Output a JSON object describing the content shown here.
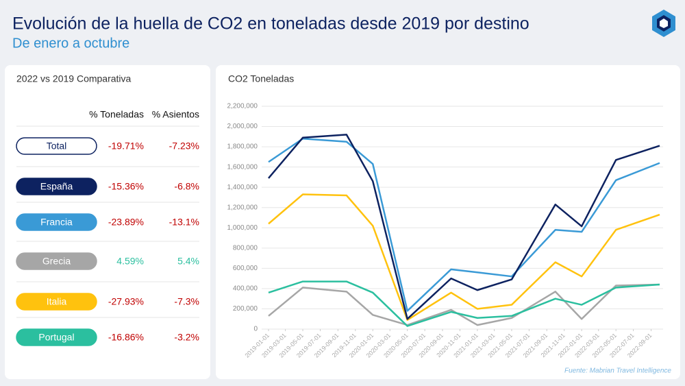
{
  "header": {
    "title": "Evolución de la huella de CO2 en toneladas desde 2019 por destino",
    "subtitle": "De enero a octubre"
  },
  "comparison": {
    "title": "2022 vs 2019 Comparativa",
    "columns": [
      "% Toneladas",
      "% Asientos"
    ],
    "rows": [
      {
        "name": "Total",
        "color": "#ffffff",
        "tons": "-19.71%",
        "seats": "-7.23%"
      },
      {
        "name": "España",
        "color": "#0d2260",
        "tons": "-15.36%",
        "seats": "-6.8%"
      },
      {
        "name": "Francia",
        "color": "#3a9ad6",
        "tons": "-23.89%",
        "seats": "-13.1%"
      },
      {
        "name": "Grecia",
        "color": "#a6a6a6",
        "tons": "4.59%",
        "seats": "5.4%"
      },
      {
        "name": "Italia",
        "color": "#ffc20e",
        "tons": "-27.93%",
        "seats": "-7.3%"
      },
      {
        "name": "Portugal",
        "color": "#2bbf9f",
        "tons": "-16.86%",
        "seats": "-3.2%"
      }
    ]
  },
  "chart_data": {
    "type": "line",
    "title": "CO2 Toneladas",
    "source": "Fuente: Mabrian Travel Intelligence",
    "x": [
      "2019-01-01",
      "2019-05-01",
      "2019-10-01",
      "2020-01-01",
      "2020-05-01",
      "2020-10-01",
      "2021-01-01",
      "2021-05-01",
      "2021-10-01",
      "2022-01-01",
      "2022-05-01",
      "2022-10-01"
    ],
    "series": [
      {
        "color": "#a6a6a6",
        "values": [
          130000,
          410000,
          370000,
          140000,
          40000,
          190000,
          40000,
          110000,
          370000,
          100000,
          430000,
          440000
        ]
      },
      {
        "color": "#2bbf9f",
        "values": [
          360000,
          470000,
          470000,
          360000,
          30000,
          170000,
          110000,
          130000,
          300000,
          240000,
          410000,
          440000
        ]
      },
      {
        "color": "#ffc20e",
        "values": [
          1040000,
          1330000,
          1320000,
          1020000,
          90000,
          360000,
          200000,
          240000,
          660000,
          520000,
          980000,
          1130000
        ]
      },
      {
        "color": "#3a9ad6",
        "values": [
          1650000,
          1880000,
          1850000,
          1630000,
          180000,
          590000,
          560000,
          520000,
          980000,
          960000,
          1470000,
          1640000
        ]
      },
      {
        "color": "#0d2260",
        "values": [
          1490000,
          1890000,
          1920000,
          1460000,
          100000,
          500000,
          385000,
          490000,
          1230000,
          1015000,
          1670000,
          1810000
        ]
      }
    ],
    "xlim": [
      "2019-01-01",
      "2022-10-01"
    ],
    "xticks": [
      "2019-01-01",
      "2019-03-01",
      "2019-05-01",
      "2019-07-01",
      "2019-09-01",
      "2019-11-01",
      "2020-01-01",
      "2020-03-01",
      "2020-05-01",
      "2020-07-01",
      "2020-09-01",
      "2020-11-01",
      "2021-01-01",
      "2021-03-01",
      "2021-05-01",
      "2021-07-01",
      "2021-09-01",
      "2021-11-01",
      "2022-01-01",
      "2022-03-01",
      "2022-05-01",
      "2022-07-01",
      "2022-09-01"
    ],
    "ylim": [
      0,
      2200000
    ],
    "yticks": [
      0,
      {
        "value": 200000,
        "label": "200,000"
      },
      {
        "value": 400000,
        "label": "400,000"
      },
      {
        "value": 600000,
        "label": "600,000"
      },
      {
        "value": 800000,
        "label": "800,000"
      },
      {
        "value": 1000000,
        "label": "1,000,000"
      },
      {
        "value": 1200000,
        "label": "1,200,000"
      },
      {
        "value": 1400000,
        "label": "1,400,000"
      },
      {
        "value": 1600000,
        "label": "1,600,000"
      },
      {
        "value": 1800000,
        "label": "1,800,000"
      },
      {
        "value": 2000000,
        "label": "2,000,000"
      },
      {
        "value": 2200000,
        "label": "2,200,000"
      }
    ],
    "grid": true
  }
}
